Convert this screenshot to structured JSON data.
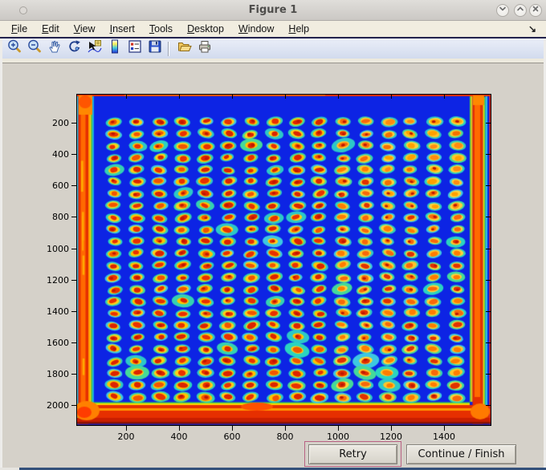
{
  "window": {
    "title": "Figure 1",
    "controls": [
      {
        "name": "minimize-button",
        "icon": "chevron-down-icon"
      },
      {
        "name": "maximize-button",
        "icon": "chevron-up-icon"
      },
      {
        "name": "close-button",
        "icon": "close-icon"
      }
    ]
  },
  "menubar": {
    "items": [
      "File",
      "Edit",
      "View",
      "Insert",
      "Tools",
      "Desktop",
      "Window",
      "Help"
    ],
    "dock_arrow_glyph": "↘"
  },
  "toolbar": {
    "groups": [
      [
        "zoom-in-icon",
        "zoom-out-icon",
        "pan-icon",
        "rotate-3d-icon",
        "data-cursor-icon",
        "colorbar-icon",
        "legend-icon",
        "save-icon"
      ],
      [
        "open-folder-icon",
        "print-icon"
      ]
    ]
  },
  "figure": {
    "buttons": [
      {
        "name": "retry-button",
        "label": "Retry",
        "focused": true
      },
      {
        "name": "continue-finish-button",
        "label": "Continue / Finish",
        "focused": false
      }
    ]
  },
  "chart_data": {
    "type": "heatmap",
    "title": "Figure 1",
    "xlabel": "",
    "ylabel": "",
    "xticks": [
      200,
      400,
      600,
      800,
      1000,
      1200,
      1400
    ],
    "yticks": [
      200,
      400,
      600,
      800,
      1000,
      1200,
      1400,
      1600,
      1800,
      2000
    ],
    "x_range": [
      0,
      1570
    ],
    "y_range": [
      0,
      2130
    ],
    "colormap": "jet",
    "grid": {
      "rows": 24,
      "cols": 16
    },
    "description": "Pseudocolor (jet) intensity image of a 384-well microplate scan: 16 columns x 24 rows of hot spots (red/orange cores with yellow rings and cyan halos) on a deep blue plate; plate borders glow red/orange with cyan fringes and bright corner hot-spots; a red vertical band runs near the right edge.",
    "colors": {
      "background": "#0c1fd8",
      "plate": "#0d24e4",
      "edge_hot": "#e62f00",
      "edge_orange": "#ff7a00",
      "edge_cyan": "#38c8e0",
      "spot_halo": "#2ec8c6",
      "spot_ring": "#ffcf00",
      "spot_core_left": "#dc2300",
      "spot_core_right": "#ff7c00"
    }
  }
}
